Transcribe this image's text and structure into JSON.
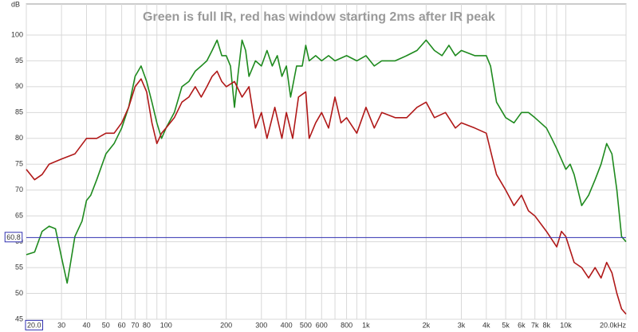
{
  "chart_data": {
    "type": "line",
    "title": "Green is full IR, red has window starting 2ms after IR peak",
    "y_label": "dB",
    "log_x": true,
    "grid": true,
    "xlim": [
      20,
      20000
    ],
    "ylim": [
      45,
      106
    ],
    "xticks": [
      {
        "value": 20,
        "label": "20.0"
      },
      30,
      40,
      50,
      60,
      70,
      80,
      100,
      200,
      300,
      400,
      500,
      600,
      800,
      {
        "value": 1000,
        "label": "1k"
      },
      {
        "value": 2000,
        "label": "2k"
      },
      {
        "value": 3000,
        "label": "3k"
      },
      {
        "value": 4000,
        "label": "4k"
      },
      {
        "value": 5000,
        "label": "5k"
      },
      {
        "value": 6000,
        "label": "6k"
      },
      {
        "value": 7000,
        "label": "7k"
      },
      {
        "value": 8000,
        "label": "8k"
      },
      {
        "value": 10000,
        "label": "10k"
      },
      {
        "value": 20000,
        "label": "20.0kHz"
      }
    ],
    "xminor": [
      90,
      700,
      900,
      9000
    ],
    "yticks": [
      45,
      50,
      55,
      60,
      65,
      70,
      75,
      80,
      85,
      90,
      95,
      100
    ],
    "cursor": 60.8,
    "cursor_color": "#3030b0",
    "series": [
      {
        "name": "full IR",
        "color": "#1e8a1e",
        "x": [
          20,
          22,
          24,
          26,
          28,
          30,
          32,
          33,
          35,
          38,
          40,
          42,
          45,
          50,
          55,
          60,
          65,
          70,
          75,
          80,
          85,
          90,
          95,
          100,
          110,
          120,
          130,
          140,
          150,
          160,
          170,
          180,
          190,
          200,
          210,
          220,
          230,
          240,
          250,
          260,
          280,
          300,
          320,
          340,
          360,
          380,
          400,
          420,
          450,
          480,
          500,
          520,
          560,
          600,
          650,
          700,
          800,
          900,
          1000,
          1100,
          1200,
          1400,
          1600,
          1800,
          2000,
          2200,
          2400,
          2600,
          2800,
          3000,
          3500,
          4000,
          4200,
          4500,
          5000,
          5500,
          6000,
          6500,
          7000,
          8000,
          8500,
          9000,
          10000,
          10500,
          11000,
          12000,
          13000,
          14000,
          15000,
          16000,
          17000,
          18000,
          19000,
          20000
        ],
        "values": [
          57.5,
          58,
          62,
          63,
          62.5,
          57,
          52,
          55,
          61,
          64,
          68,
          69,
          72,
          77,
          79,
          82,
          86,
          92,
          94,
          91,
          87,
          83,
          80,
          82,
          85,
          90,
          91,
          93,
          94,
          95,
          97,
          99,
          96,
          96,
          94,
          86,
          93,
          99,
          97,
          92,
          95,
          94,
          97,
          94,
          96,
          92,
          94,
          88,
          94,
          94,
          98,
          95,
          96,
          95,
          96,
          95,
          96,
          95,
          96,
          94,
          95,
          95,
          96,
          97,
          99,
          97,
          96,
          98,
          96,
          97,
          96,
          96,
          94,
          87,
          84,
          83,
          85,
          85,
          84,
          82,
          80,
          78,
          74,
          75,
          73,
          67,
          69,
          72,
          75,
          79,
          77,
          70,
          61,
          60
        ]
      },
      {
        "name": "windowed",
        "color": "#b01818",
        "x": [
          20,
          22,
          24,
          26,
          30,
          35,
          40,
          45,
          50,
          55,
          60,
          65,
          70,
          75,
          80,
          85,
          90,
          95,
          100,
          110,
          120,
          130,
          140,
          150,
          160,
          170,
          180,
          190,
          200,
          220,
          240,
          260,
          280,
          300,
          320,
          350,
          380,
          400,
          430,
          460,
          500,
          520,
          560,
          600,
          650,
          700,
          750,
          800,
          900,
          1000,
          1100,
          1200,
          1400,
          1600,
          1800,
          2000,
          2200,
          2500,
          2800,
          3000,
          3500,
          4000,
          4300,
          4500,
          5000,
          5500,
          6000,
          6500,
          7000,
          8000,
          9000,
          9500,
          10000,
          11000,
          12000,
          13000,
          14000,
          15000,
          16000,
          17000,
          18000,
          19000,
          20000
        ],
        "values": [
          74,
          72,
          73,
          75,
          76,
          77,
          80,
          80,
          81,
          81,
          83,
          86,
          90,
          91.5,
          89,
          83,
          79,
          81,
          82,
          84,
          87,
          88,
          90,
          88,
          90,
          92,
          93,
          91,
          90,
          91,
          88,
          90,
          82,
          85,
          80,
          86,
          80,
          85,
          80,
          88,
          89,
          80,
          83,
          85,
          82,
          88,
          83,
          84,
          81,
          86,
          82,
          85,
          84,
          84,
          86,
          87,
          84,
          85,
          82,
          83,
          82,
          81,
          76,
          73,
          70,
          67,
          69,
          66,
          65,
          62,
          59,
          62,
          61,
          56,
          55,
          53,
          55,
          53,
          56,
          54,
          50,
          47,
          46
        ]
      }
    ]
  }
}
